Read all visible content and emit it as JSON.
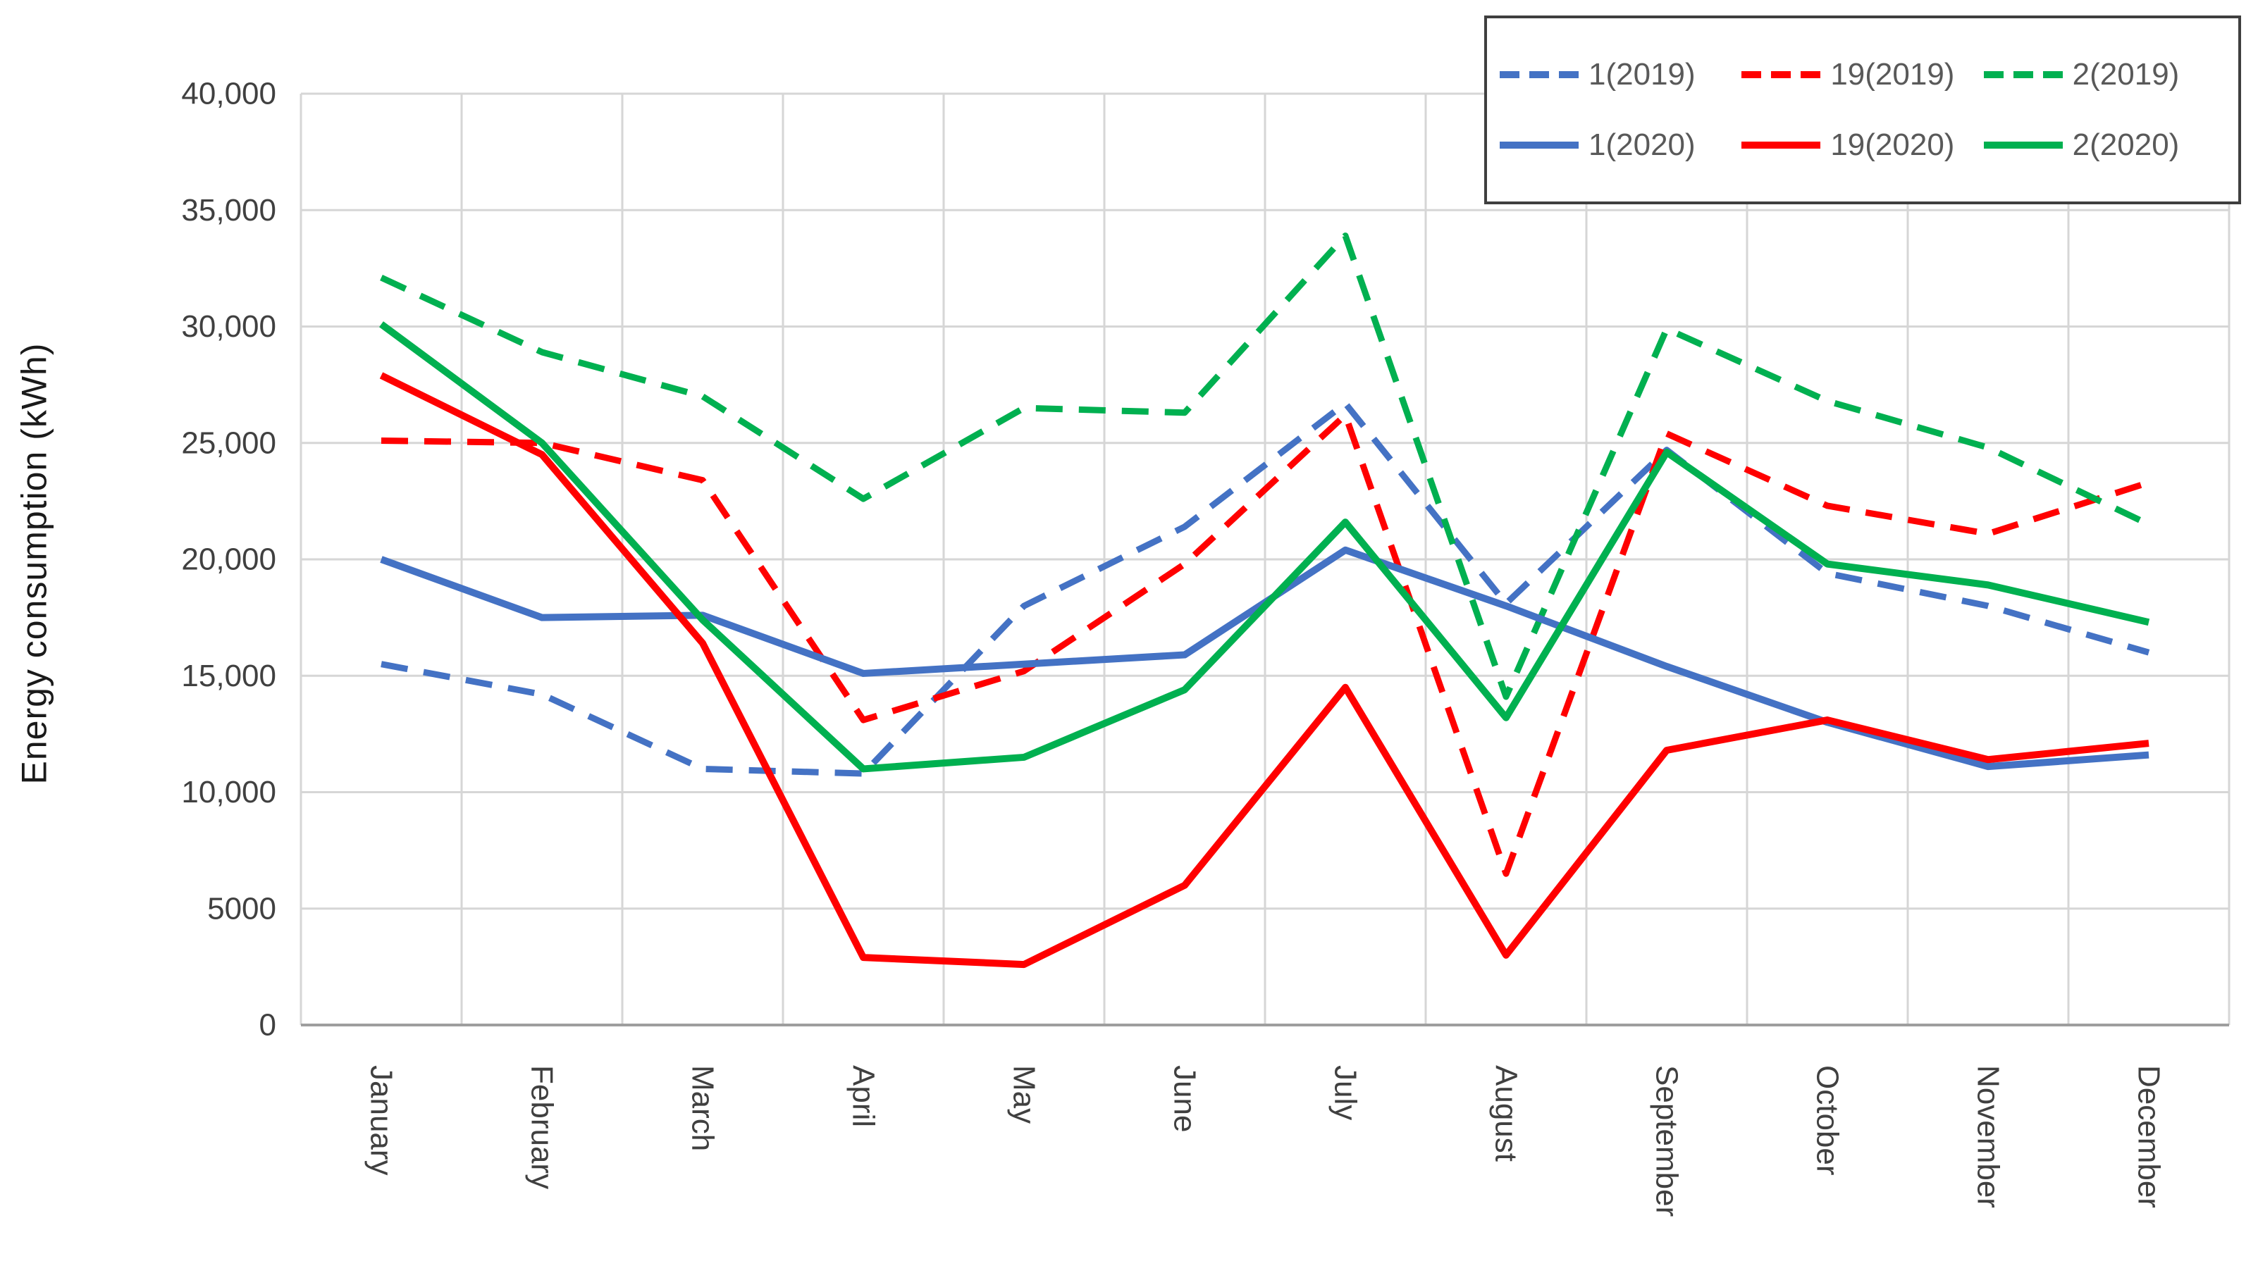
{
  "chart_data": {
    "type": "line",
    "title": "",
    "xlabel": "",
    "ylabel": "Energy consumption (kWh)",
    "ylim": [
      0,
      40000
    ],
    "ytick_interval": 5000,
    "ytick_labels": [
      "0",
      "5000",
      "10,000",
      "15,000",
      "20,000",
      "25,000",
      "30,000",
      "35,000",
      "40,000"
    ],
    "grid": true,
    "legend_position": "top-right",
    "categories": [
      "January",
      "February",
      "March",
      "April",
      "May",
      "June",
      "July",
      "August",
      "September",
      "October",
      "November",
      "December"
    ],
    "series": [
      {
        "name": "1(2019)",
        "color": "#4472C4",
        "style": "dashed",
        "values": [
          15500,
          14200,
          11000,
          10800,
          18000,
          21400,
          26700,
          18100,
          24700,
          19400,
          18000,
          16000
        ]
      },
      {
        "name": "19(2019)",
        "color": "#FF0000",
        "style": "dashed",
        "values": [
          25100,
          25000,
          23400,
          13100,
          15200,
          19800,
          26200,
          6500,
          25400,
          22300,
          21100,
          23300
        ]
      },
      {
        "name": "2(2019)",
        "color": "#00B050",
        "style": "dashed",
        "values": [
          32100,
          28900,
          27000,
          22600,
          26500,
          26300,
          33900,
          14100,
          29900,
          26800,
          24800,
          21500
        ]
      },
      {
        "name": "1(2020)",
        "color": "#4472C4",
        "style": "solid",
        "values": [
          20000,
          17500,
          17600,
          15100,
          15500,
          15900,
          20400,
          18000,
          15400,
          13000,
          11100,
          11600
        ]
      },
      {
        "name": "19(2020)",
        "color": "#FF0000",
        "style": "solid",
        "values": [
          27900,
          24500,
          16400,
          2900,
          2600,
          6000,
          14500,
          3000,
          11800,
          13100,
          11400,
          12100
        ]
      },
      {
        "name": "2(2020)",
        "color": "#00B050",
        "style": "solid",
        "values": [
          30100,
          25000,
          17400,
          11000,
          11500,
          14400,
          21600,
          13200,
          24600,
          19800,
          18900,
          17300
        ]
      }
    ],
    "legend_rows": [
      [
        "1(2019)",
        "19(2019)",
        "2(2019)"
      ],
      [
        "1(2020)",
        "19(2020)",
        "2(2020)"
      ]
    ],
    "colors": {
      "background": "#FFFFFF",
      "gridline": "#D6D6D6",
      "axis_line": "#9E9E9E",
      "tick_text": "#404040",
      "legend_text": "#595959",
      "legend_border": "#3F3F3F"
    }
  }
}
